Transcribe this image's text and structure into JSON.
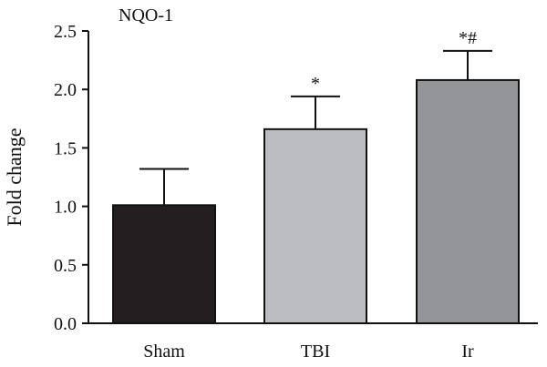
{
  "chart_data": {
    "type": "bar",
    "title": "NQO-1",
    "xlabel": "",
    "ylabel": "Fold change",
    "ylim": [
      0,
      2.5
    ],
    "yticks": [
      0.0,
      0.5,
      1.0,
      1.5,
      2.0,
      2.5
    ],
    "ytick_labels": [
      "0.0",
      "0.5",
      "1.0",
      "1.5",
      "2.0",
      "2.5"
    ],
    "categories": [
      "Sham",
      "TBI",
      "Ir"
    ],
    "values": [
      1.01,
      1.66,
      2.08
    ],
    "errors": [
      0.31,
      0.28,
      0.25
    ],
    "annotations": [
      "",
      "*",
      "*#"
    ],
    "colors": [
      "#231f20",
      "#bcbdc0",
      "#939598"
    ],
    "grid": false,
    "legend": "none"
  }
}
